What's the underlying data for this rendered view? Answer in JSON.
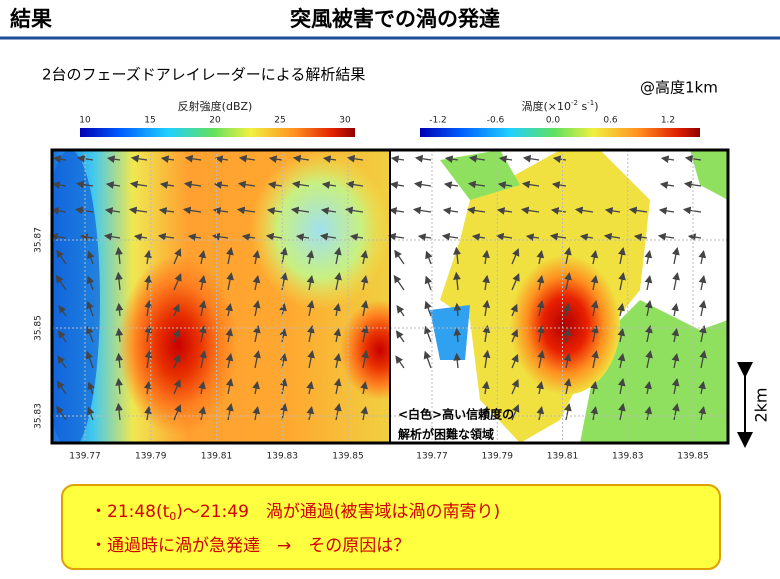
{
  "header": {
    "left": "結果",
    "title": "突風被害での渦の発達"
  },
  "subtitle": "2台のフェーズドアレイレーダーによる解析結果",
  "altitude": "@高度1km",
  "panels": [
    {
      "colorbar_label": [
        "反射強度(dBZ)"
      ],
      "colorbar_ticks": [
        "10",
        "15",
        "20",
        "25",
        "30"
      ],
      "x_ticks": [
        "139.77",
        "139.79",
        "139.81",
        "139.83",
        "139.85"
      ],
      "y_ticks": [
        "35.87",
        "35.85",
        "35.83"
      ]
    },
    {
      "colorbar_label": [
        "渦度(×10",
        "-2",
        " s",
        "-1",
        ")"
      ],
      "colorbar_ticks": [
        "-1.2",
        "-0.6",
        "0.0",
        "0.6",
        "1.2"
      ],
      "x_ticks": [
        "139.77",
        "139.79",
        "139.81",
        "139.83",
        "139.85"
      ]
    }
  ],
  "note": [
    "<白色>高い信頼度の",
    "解析が困難な領域"
  ],
  "scale": "2km",
  "summary": [
    [
      "・21:48(t",
      "0",
      ")〜21:49　渦が通過(被害域は渦の南寄り)"
    ],
    [
      "・通過時に渦が急発達　→　その原因は？"
    ]
  ]
}
